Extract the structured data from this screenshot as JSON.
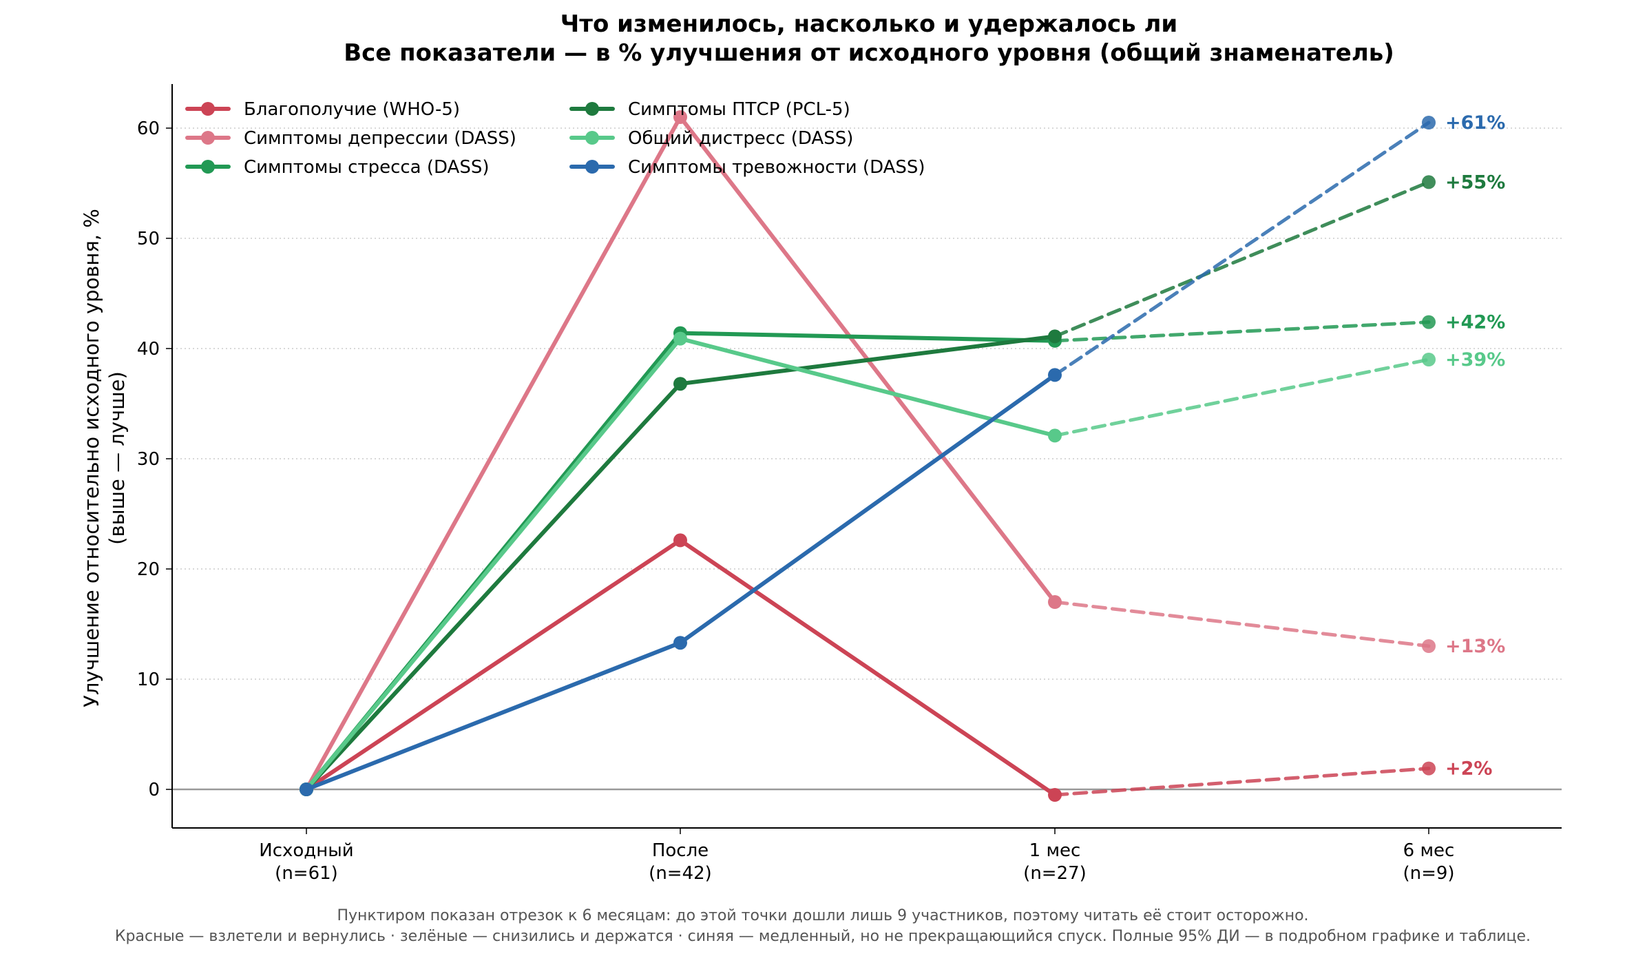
{
  "chart_data": {
    "type": "line",
    "title": "Что изменилось, насколько и удержалось ли",
    "subtitle": "Все показатели — в % улучшения от исходного уровня (общий знаменатель)",
    "ylabel_line1": "Улучшение относительно исходного уровня, %",
    "ylabel_line2": "(выше — лучше)",
    "xlabel": "",
    "categories": [
      {
        "label": "Исходный",
        "n": "(n=61)"
      },
      {
        "label": "После",
        "n": "(n=42)"
      },
      {
        "label": "1 мес",
        "n": "(n=27)"
      },
      {
        "label": "6 мес",
        "n": "(n=9)"
      }
    ],
    "ylim": [
      -3.5,
      64
    ],
    "yticks": [
      0,
      10,
      20,
      30,
      40,
      50,
      60
    ],
    "grid": "horizontal dotted",
    "legend_position": "top-left",
    "dashed_segment": "1 мес → 6 мес",
    "series": [
      {
        "name": "Благополучие (WHO-5)",
        "color": "#cc4455",
        "values": [
          0,
          22.6,
          -0.5,
          1.9
        ],
        "end_label": "+2%"
      },
      {
        "name": "Симптомы депрессии (DASS)",
        "color": "#dd7788",
        "values": [
          0,
          61.0,
          17.0,
          13.0
        ],
        "end_label": "+13%"
      },
      {
        "name": "Симптомы стресса (DASS)",
        "color": "#229954",
        "values": [
          0,
          41.4,
          40.7,
          42.4
        ],
        "end_label": "+42%"
      },
      {
        "name": "Симптомы ПТСР (PCL-5)",
        "color": "#1e7a3e",
        "values": [
          0,
          36.8,
          41.1,
          55.1
        ],
        "end_label": "+55%"
      },
      {
        "name": "Общий дистресс (DASS)",
        "color": "#58c98a",
        "values": [
          0,
          40.9,
          32.1,
          39.0
        ],
        "end_label": "+39%"
      },
      {
        "name": "Симптомы тревожности (DASS)",
        "color": "#2b6aad",
        "values": [
          0,
          13.3,
          37.6,
          60.5
        ],
        "end_label": "+61%"
      }
    ],
    "footnote_line1": "Пунктиром показан отрезок к 6 месяцам: до этой точки дошли лишь 9 участников, поэтому читать её стоит осторожно.",
    "footnote_line2": "Красные — взлетели и вернулись · зелёные — снизились и держатся · синяя — медленный, но не прекращающийся спуск. Полные 95% ДИ — в подробном графике и таблице."
  }
}
